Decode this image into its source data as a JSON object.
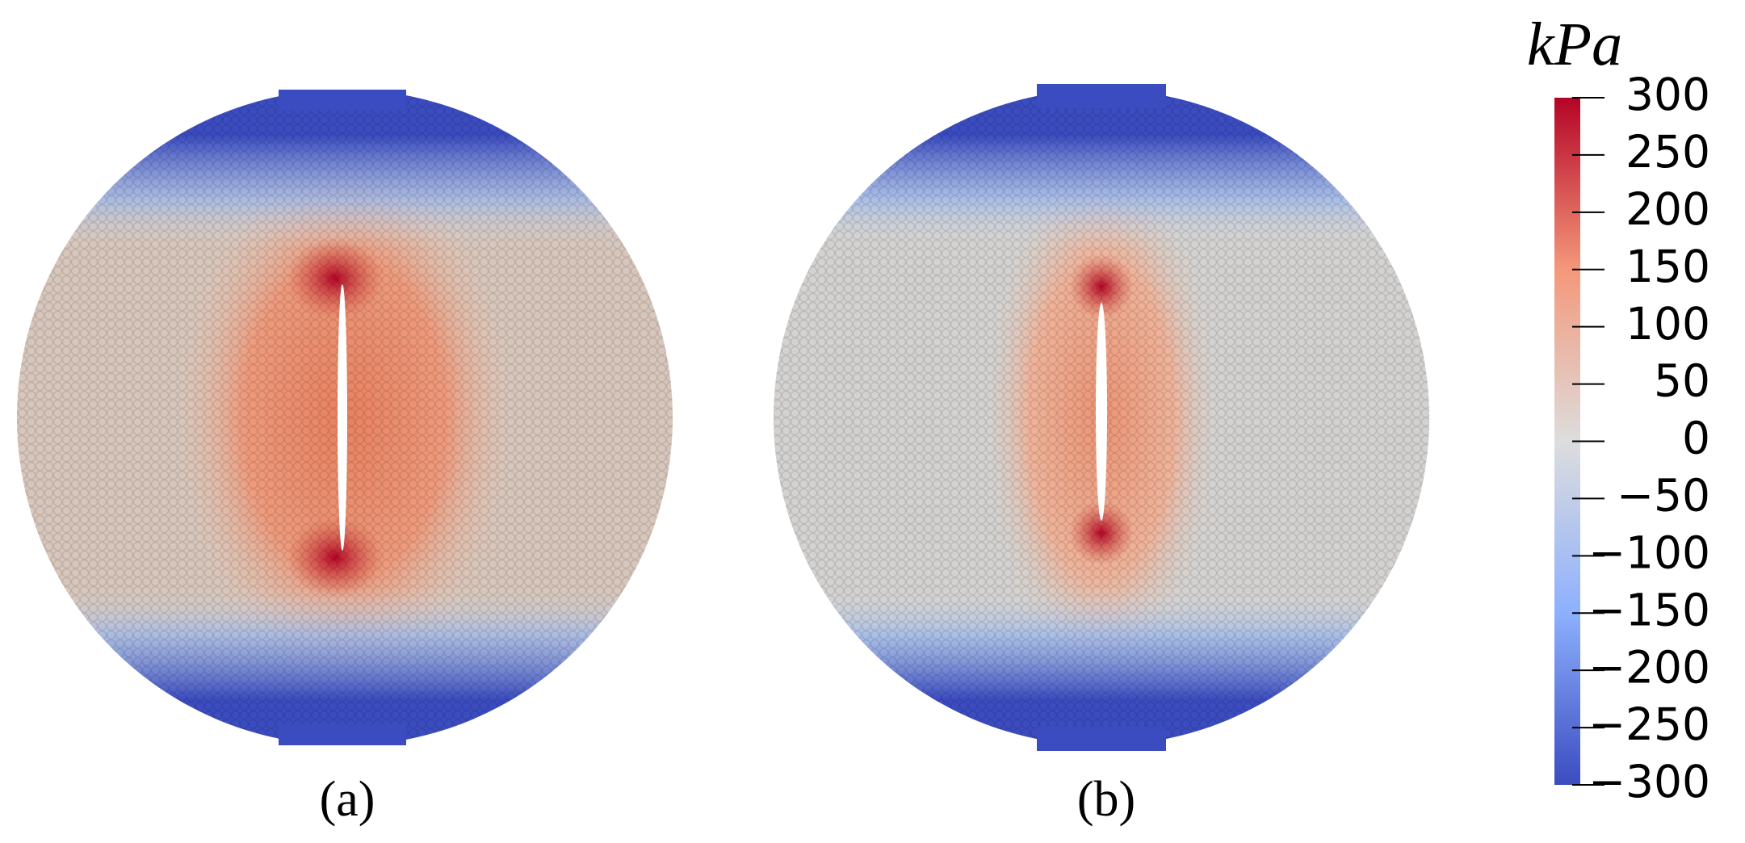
{
  "panels": [
    {
      "label": "(a)"
    },
    {
      "label": "(b)"
    }
  ],
  "colorbar": {
    "unit": "kPa",
    "range": [
      -300,
      300
    ],
    "ticks": [
      300,
      250,
      200,
      150,
      100,
      50,
      0,
      {
        "value": -50,
        "label": "−50"
      },
      {
        "value": -100,
        "label": "−100"
      },
      {
        "value": -150,
        "label": "−150"
      },
      {
        "value": -200,
        "label": "−200"
      },
      {
        "value": -250,
        "label": "−250"
      },
      {
        "value": -300,
        "label": "−300"
      }
    ]
  }
}
